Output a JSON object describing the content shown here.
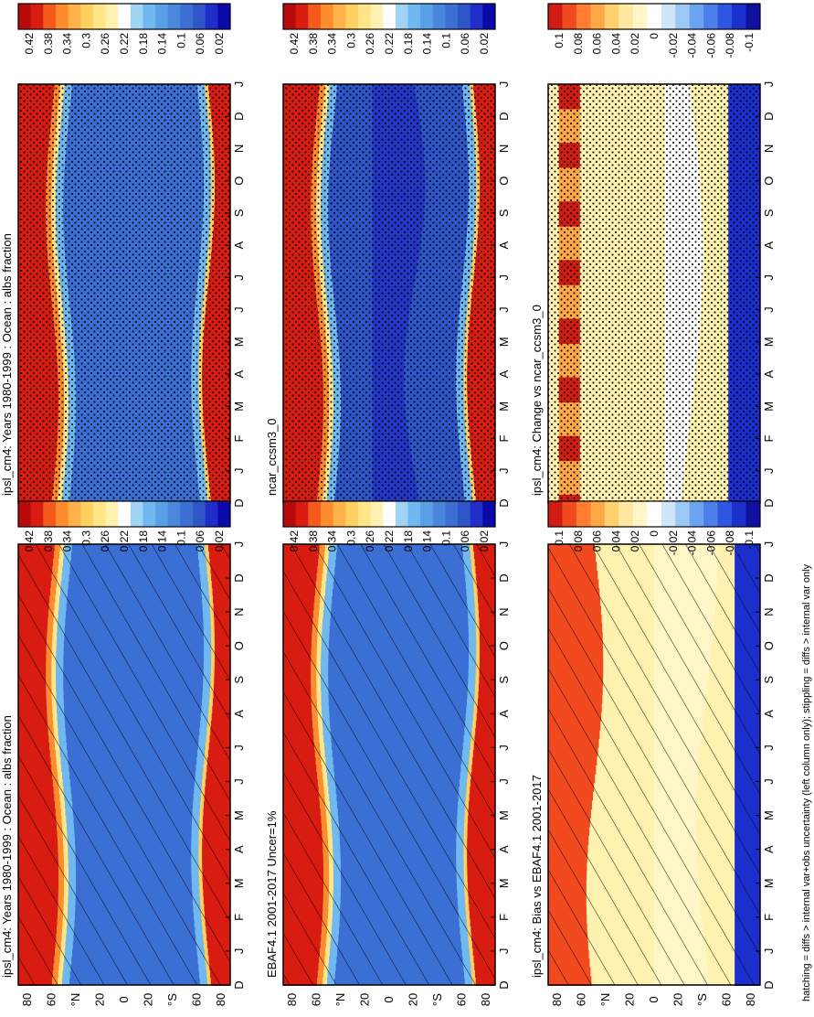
{
  "figure": {
    "footnote": "hatching = diffs > internal var+obs uncertainty (left column only); stippling = diffs > internal var only",
    "months": [
      "D",
      "J",
      "F",
      "M",
      "A",
      "M",
      "J",
      "J",
      "A",
      "S",
      "O",
      "N",
      "D",
      "J"
    ],
    "lat_ticks": [
      "80",
      "60",
      "°N",
      "20",
      "0",
      "20",
      "°S",
      "60",
      "80"
    ],
    "colors": {
      "abs_scale": [
        "#0a0aa8",
        "#1f2ec8",
        "#2f56c8",
        "#3c6fd4",
        "#4a86dc",
        "#5aa0e6",
        "#6fb8f0",
        "#9fd4f4",
        "#ffffff",
        "#fff2b0",
        "#ffe488",
        "#ffd060",
        "#ffb24a",
        "#ff8c2c",
        "#f45a1c",
        "#d91c12",
        "#b80a0a"
      ],
      "diff_scale": [
        "#1010a0",
        "#1c2ecc",
        "#2e56e0",
        "#4a7ee8",
        "#6aa4f0",
        "#9cc8f4",
        "#cfe6fa",
        "#ffffff",
        "#fff6c8",
        "#ffe8a0",
        "#ffd070",
        "#ffa848",
        "#ff7c30",
        "#f04a1e",
        "#d01c12"
      ]
    }
  },
  "panels": [
    {
      "id": "p1",
      "title": "ipsl_cm4: Years 1980-1999 : Ocean : albs fraction",
      "pattern": "hatch",
      "kind": "abs"
    },
    {
      "id": "p2",
      "title": "EBAF4.1 2001-2017 Uncer=1%",
      "pattern": "hatch",
      "kind": "abs"
    },
    {
      "id": "p3",
      "title": "ipsl_cm4: Bias vs EBAF4.1 2001-2017",
      "pattern": "hatch",
      "kind": "bias"
    },
    {
      "id": "p4",
      "title": "ipsl_cm4: Years 1980-1999 : Ocean : albs fraction",
      "pattern": "dots",
      "kind": "abs"
    },
    {
      "id": "p5",
      "title": "ncar_ccsm3_0",
      "pattern": "dots",
      "kind": "abs2"
    },
    {
      "id": "p6",
      "title": "ipsl_cm4: Change vs ncar_ccsm3_0",
      "pattern": "dots",
      "kind": "change"
    }
  ],
  "colorbars": {
    "abs_labels": [
      "0.42",
      "0.38",
      "0.34",
      "0.3",
      "0.26",
      "0.22",
      "0.18",
      "0.14",
      "0.1",
      "0.06",
      "0.02"
    ],
    "diff_labels": [
      "0.1",
      "0.08",
      "0.06",
      "0.04",
      "0.02",
      "0",
      "-0.02",
      "-0.04",
      "-0.06",
      "-0.08",
      "-0.1"
    ]
  },
  "chart_data": [
    {
      "type": "heatmap",
      "title": "ipsl_cm4: Years 1980-1999 : Ocean : albs fraction",
      "x": "month D..J",
      "y": "latitude 90N..90S",
      "zrange": [
        0.02,
        0.42
      ]
    },
    {
      "type": "heatmap",
      "title": "EBAF4.1 2001-2017 Uncer=1%",
      "x": "month D..J",
      "y": "latitude 90N..90S",
      "zrange": [
        0.02,
        0.42
      ]
    },
    {
      "type": "heatmap",
      "title": "ipsl_cm4: Bias vs EBAF4.1 2001-2017",
      "x": "month D..J",
      "y": "latitude 90N..90S",
      "zrange": [
        -0.1,
        0.1
      ]
    },
    {
      "type": "heatmap",
      "title": "ipsl_cm4: Years 1980-1999 : Ocean : albs fraction",
      "x": "month D..J",
      "y": "latitude 90N..90S",
      "zrange": [
        0.02,
        0.42
      ]
    },
    {
      "type": "heatmap",
      "title": "ncar_ccsm3_0",
      "x": "month D..J",
      "y": "latitude 90N..90S",
      "zrange": [
        0.02,
        0.42
      ]
    },
    {
      "type": "heatmap",
      "title": "ipsl_cm4: Change vs ncar_ccsm3_0",
      "x": "month D..J",
      "y": "latitude 90N..90S",
      "zrange": [
        -0.1,
        0.1
      ]
    }
  ]
}
